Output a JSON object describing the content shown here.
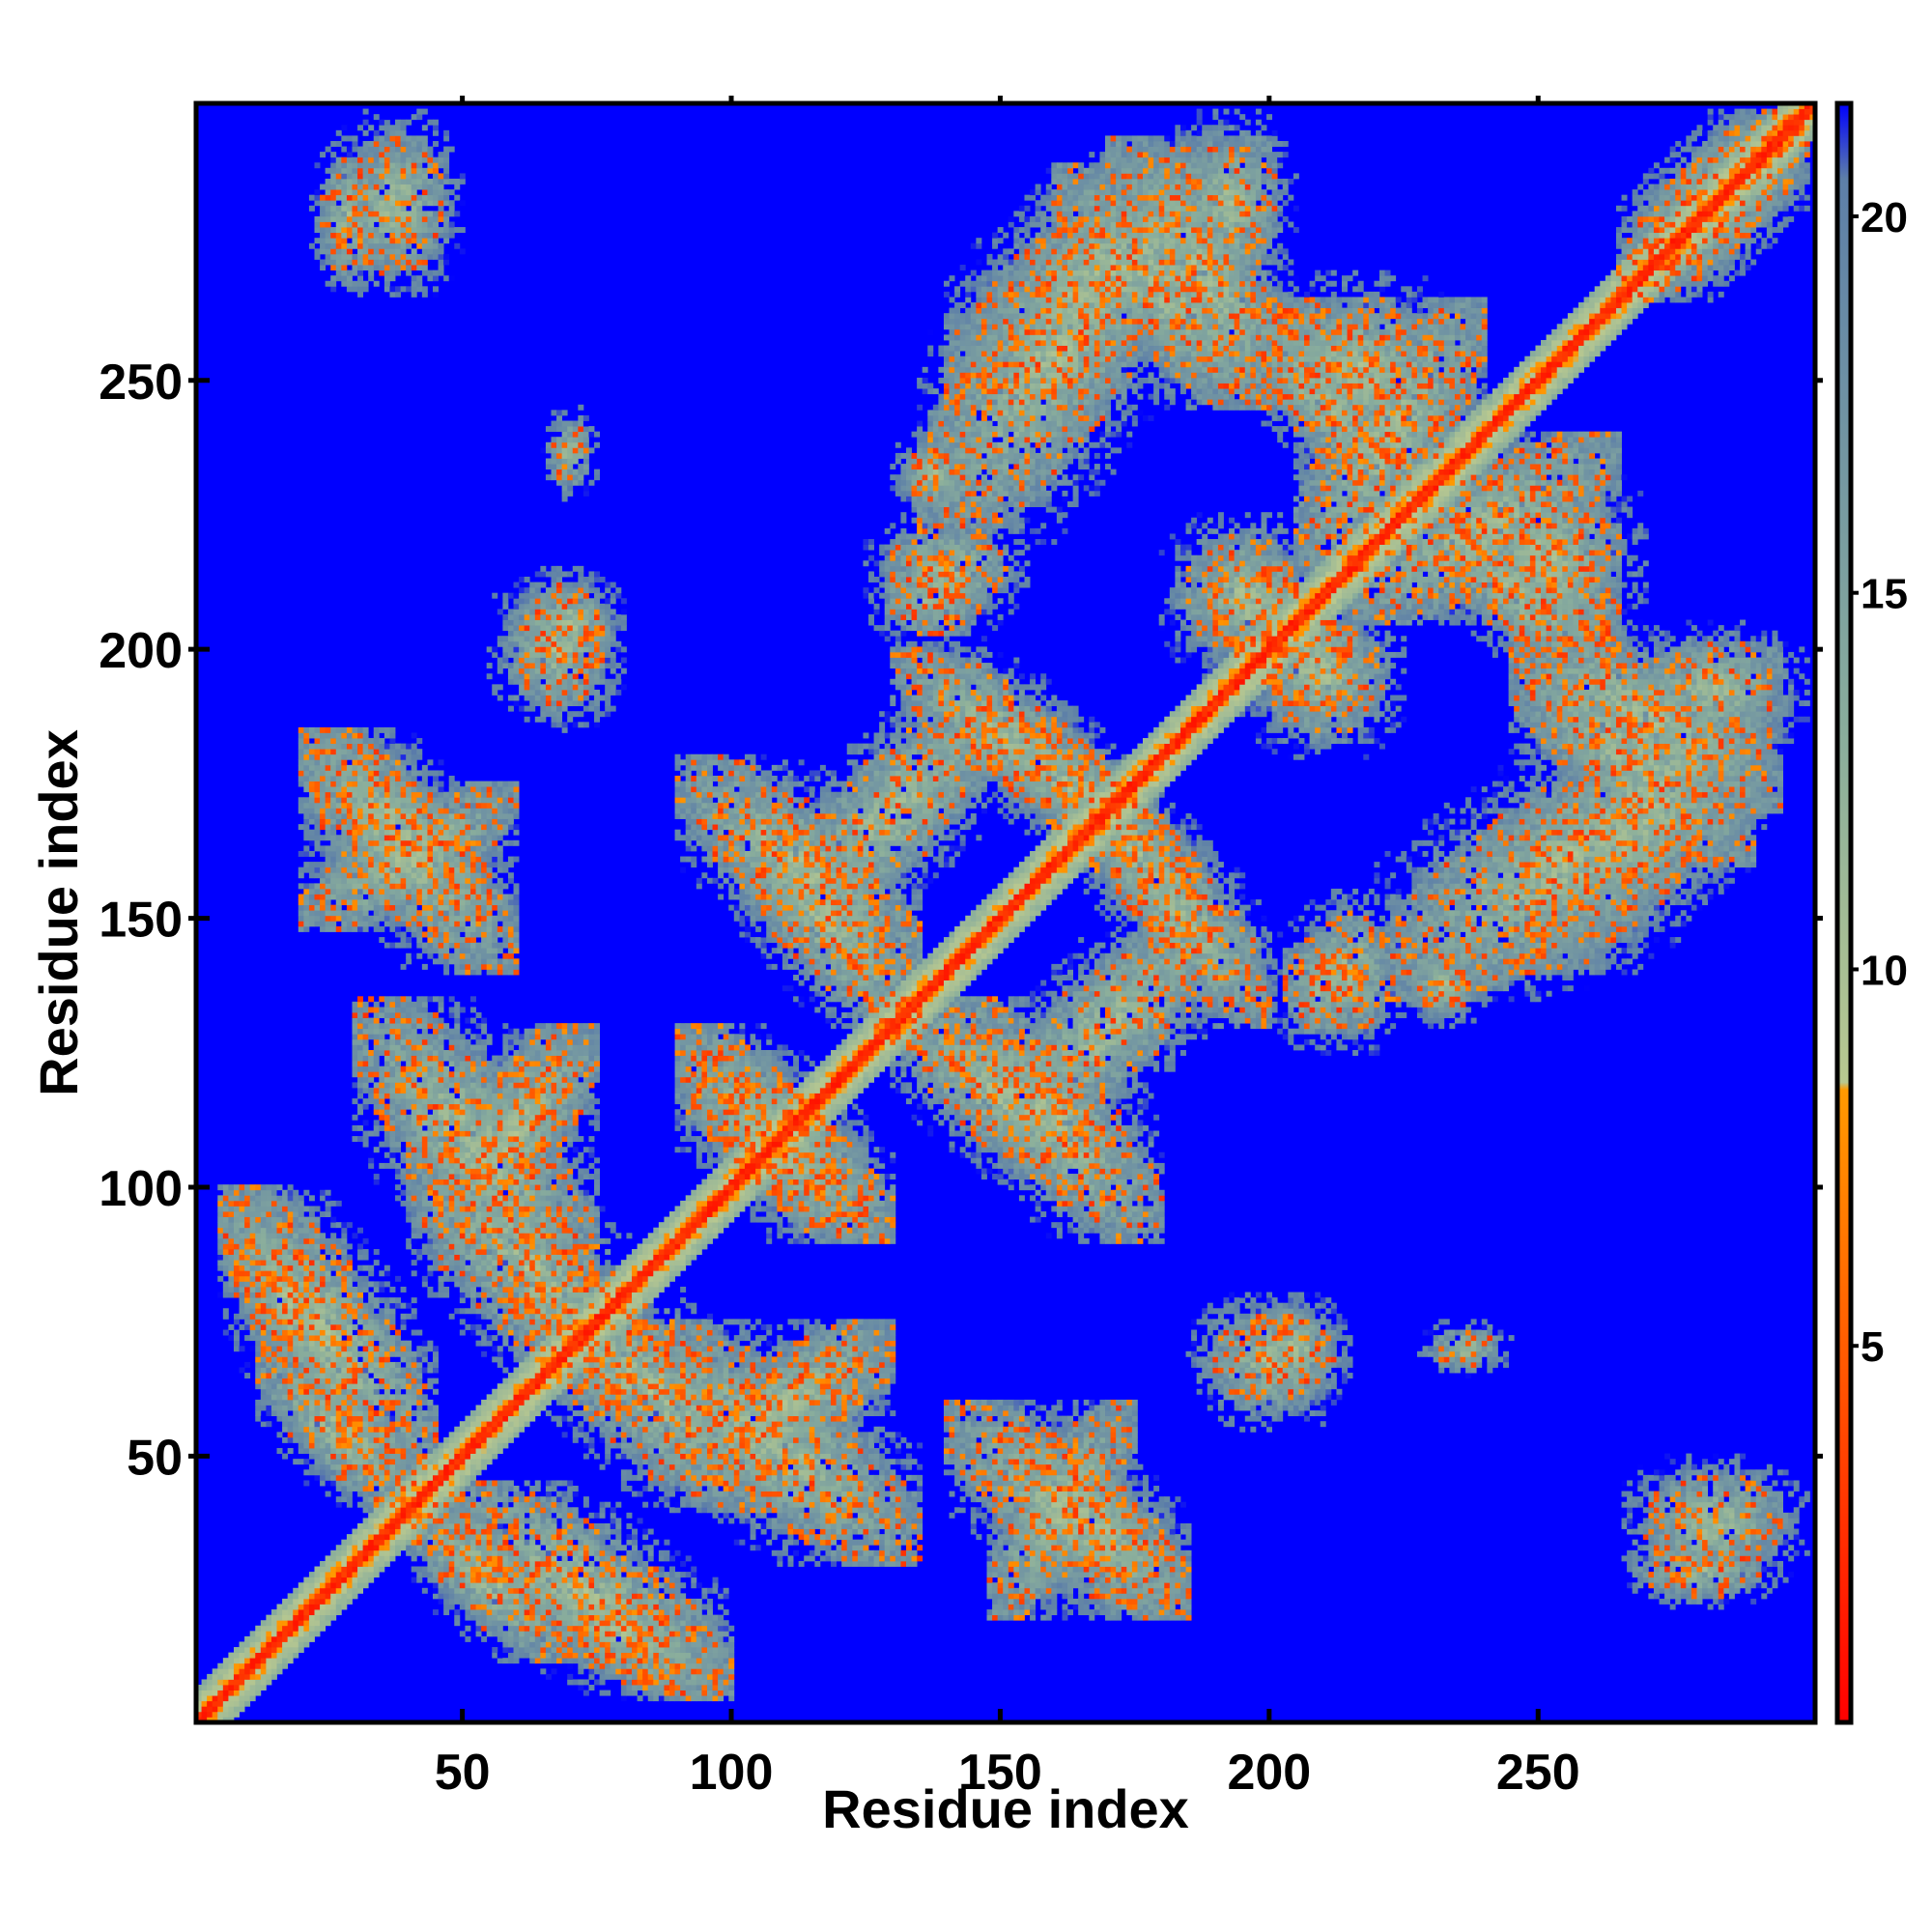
{
  "chart_data": {
    "type": "heatmap",
    "title": "",
    "xlabel": "Residue index",
    "ylabel": "Residue index",
    "xlim": [
      1,
      301
    ],
    "ylim": [
      1,
      301
    ],
    "x_ticks": [
      50,
      100,
      150,
      200,
      250
    ],
    "y_ticks": [
      50,
      100,
      150,
      200,
      250
    ],
    "n_residues": 301,
    "colorbar": {
      "range": [
        0,
        21.5
      ],
      "ticks": [
        5,
        10,
        15,
        20
      ],
      "stops": [
        {
          "value": 0,
          "color": "#ff0000"
        },
        {
          "value": 4,
          "color": "#ff4a00"
        },
        {
          "value": 8.4,
          "color": "#ff9a00"
        },
        {
          "value": 8.5,
          "color": "#b8c890"
        },
        {
          "value": 13,
          "color": "#8aae9c"
        },
        {
          "value": 20.5,
          "color": "#5d7fa8"
        },
        {
          "value": 21.5,
          "color": "#0000ff"
        }
      ]
    },
    "background_color": "#0000ff",
    "diagonal_band_halfwidth": 6,
    "contact_regions": [
      {
        "x": [
          5,
          30
        ],
        "y": [
          60,
          100
        ],
        "orientation": "anti",
        "intensity": 0.8
      },
      {
        "x": [
          12,
          42
        ],
        "y": [
          40,
          70
        ],
        "orientation": "anti",
        "intensity": 0.8
      },
      {
        "x": [
          22,
          35
        ],
        "y": [
          265,
          295
        ],
        "orientation": "none",
        "intensity": 0.7
      },
      {
        "x": [
          20,
          60
        ],
        "y": [
          140,
          185
        ],
        "orientation": "anti",
        "intensity": 0.8
      },
      {
        "x": [
          60,
          80
        ],
        "y": [
          195,
          215
        ],
        "orientation": "none",
        "intensity": 0.6
      },
      {
        "x": [
          45,
          70
        ],
        "y": [
          85,
          130
        ],
        "orientation": "para",
        "intensity": 0.7
      },
      {
        "x": [
          40,
          85
        ],
        "y": [
          60,
          110
        ],
        "orientation": "anti",
        "intensity": 0.9
      },
      {
        "x": [
          45,
          100
        ],
        "y": [
          5,
          45
        ],
        "orientation": "anti",
        "intensity": 0.8
      },
      {
        "x": [
          80,
          135
        ],
        "y": [
          30,
          75
        ],
        "orientation": "anti",
        "intensity": 0.8
      },
      {
        "x": [
          90,
          130
        ],
        "y": [
          45,
          75
        ],
        "orientation": "para",
        "intensity": 0.7
      },
      {
        "x": [
          90,
          130
        ],
        "y": [
          90,
          125
        ],
        "orientation": "anti",
        "intensity": 0.7
      },
      {
        "x": [
          100,
          135
        ],
        "y": [
          130,
          170
        ],
        "orientation": "anti",
        "intensity": 0.8
      },
      {
        "x": [
          110,
          150
        ],
        "y": [
          150,
          190
        ],
        "orientation": "para",
        "intensity": 0.6
      },
      {
        "x": [
          125,
          155
        ],
        "y": [
          205,
          225
        ],
        "orientation": "none",
        "intensity": 0.8
      },
      {
        "x": [
          130,
          145
        ],
        "y": [
          225,
          240
        ],
        "orientation": "none",
        "intensity": 0.5
      },
      {
        "x": [
          140,
          180
        ],
        "y": [
          90,
          135
        ],
        "orientation": "anti",
        "intensity": 0.8
      },
      {
        "x": [
          145,
          180
        ],
        "y": [
          160,
          190
        ],
        "orientation": "anti",
        "intensity": 0.8
      },
      {
        "x": [
          148,
          175
        ],
        "y": [
          20,
          60
        ],
        "orientation": "para",
        "intensity": 0.8
      },
      {
        "x": [
          150,
          185
        ],
        "y": [
          20,
          55
        ],
        "orientation": "anti",
        "intensity": 0.6
      },
      {
        "x": [
          135,
          185
        ],
        "y": [
          220,
          290
        ],
        "orientation": "para",
        "intensity": 0.6
      },
      {
        "x": [
          170,
          200
        ],
        "y": [
          130,
          170
        ],
        "orientation": "anti",
        "intensity": 0.8
      },
      {
        "x": [
          170,
          205
        ],
        "y": [
          245,
          295
        ],
        "orientation": "anti",
        "intensity": 0.7
      },
      {
        "x": [
          180,
          210
        ],
        "y": [
          195,
          225
        ],
        "orientation": "none",
        "intensity": 0.7
      },
      {
        "x": [
          185,
          215
        ],
        "y": [
          55,
          80
        ],
        "orientation": "none",
        "intensity": 0.6
      },
      {
        "x": [
          195,
          220
        ],
        "y": [
          185,
          210
        ],
        "orientation": "none",
        "intensity": 0.8
      },
      {
        "x": [
          200,
          220
        ],
        "y": [
          125,
          150
        ],
        "orientation": "none",
        "intensity": 0.7
      },
      {
        "x": [
          205,
          240
        ],
        "y": [
          215,
          265
        ],
        "orientation": "para",
        "intensity": 0.8
      },
      {
        "x": [
          200,
          235
        ],
        "y": [
          235,
          265
        ],
        "orientation": "anti",
        "intensity": 0.8
      },
      {
        "x": [
          225,
          240
        ],
        "y": [
          130,
          145
        ],
        "orientation": "none",
        "intensity": 0.5
      },
      {
        "x": [
          228,
          245
        ],
        "y": [
          65,
          75
        ],
        "orientation": "none",
        "intensity": 0.4
      },
      {
        "x": [
          230,
          265
        ],
        "y": [
          195,
          225
        ],
        "orientation": "anti",
        "intensity": 0.8
      },
      {
        "x": [
          235,
          270
        ],
        "y": [
          200,
          235
        ],
        "orientation": "none",
        "intensity": 0.7
      },
      {
        "x": [
          245,
          290
        ],
        "y": [
          160,
          200
        ],
        "orientation": "anti",
        "intensity": 0.8
      },
      {
        "x": [
          245,
          295
        ],
        "y": [
          140,
          200
        ],
        "orientation": "para",
        "intensity": 0.6
      },
      {
        "x": [
          265,
          300
        ],
        "y": [
          265,
          300
        ],
        "orientation": "para",
        "intensity": 0.7
      },
      {
        "x": [
          265,
          300
        ],
        "y": [
          180,
          205
        ],
        "orientation": "none",
        "intensity": 0.7
      },
      {
        "x": [
          265,
          300
        ],
        "y": [
          25,
          50
        ],
        "orientation": "none",
        "intensity": 0.8
      }
    ]
  }
}
